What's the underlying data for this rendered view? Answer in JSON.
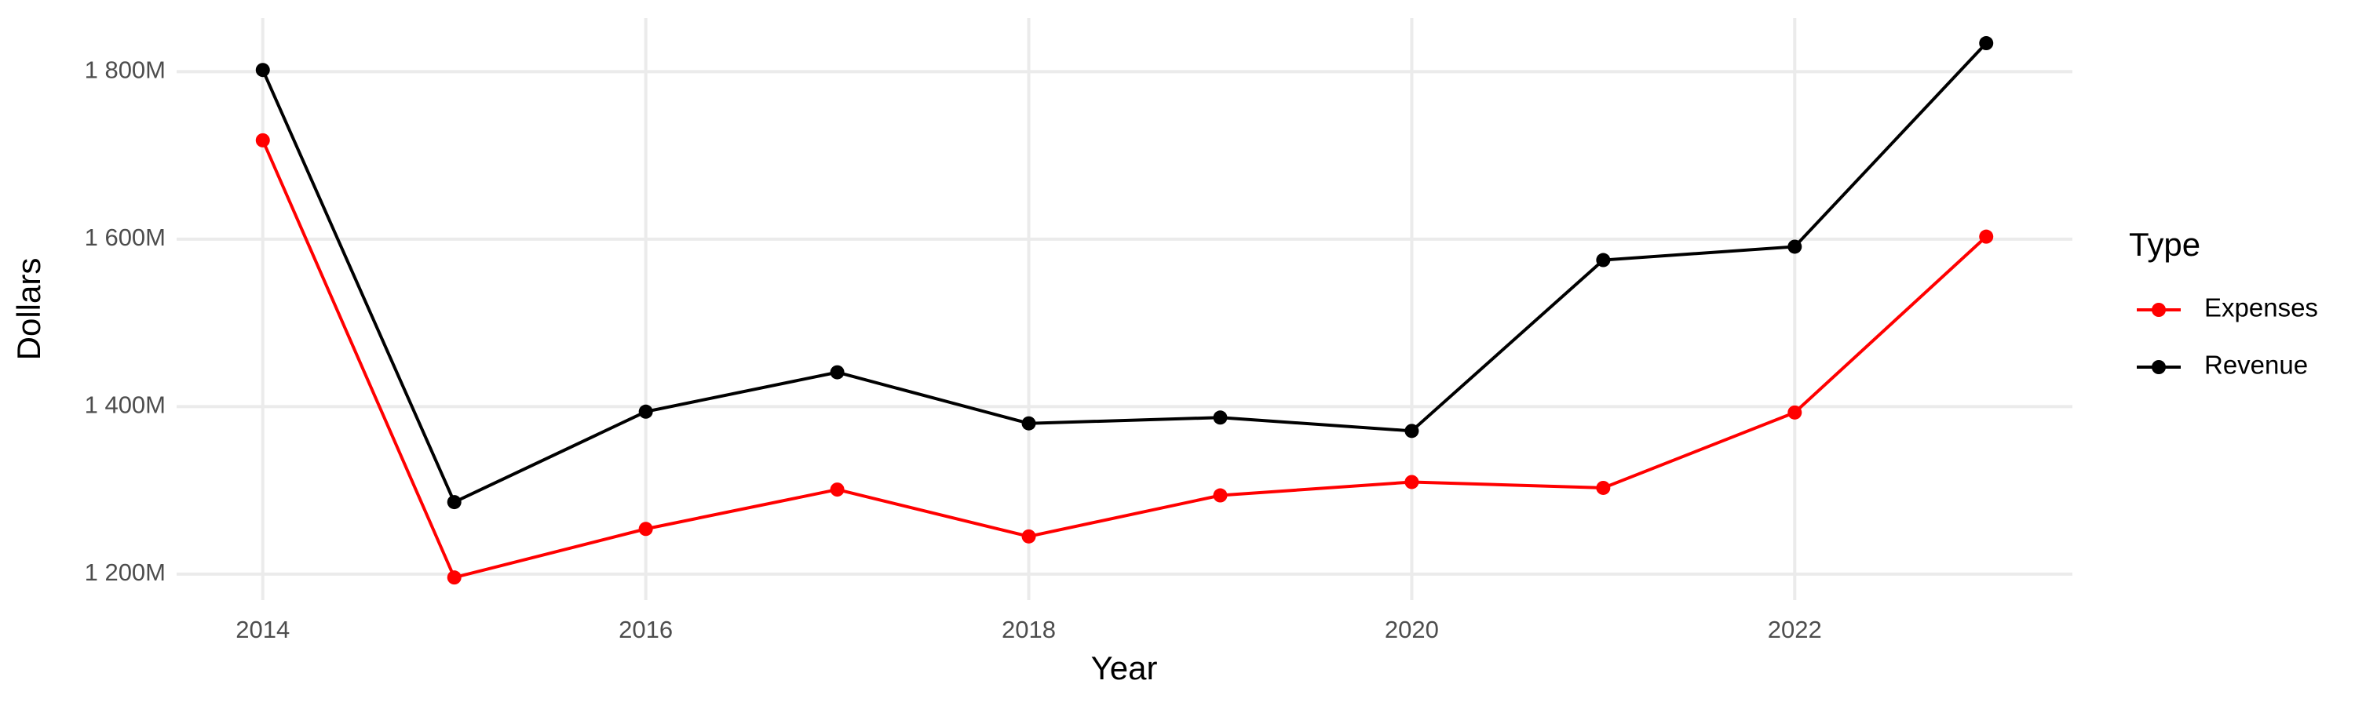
{
  "chart_data": {
    "type": "line",
    "x_label": "Year",
    "y_label": "Dollars",
    "legend_title": "Type",
    "x": [
      2014,
      2015,
      2016,
      2017,
      2018,
      2019,
      2020,
      2021,
      2022,
      2023
    ],
    "series": [
      {
        "name": "Expenses",
        "color": "#ff0000",
        "values": [
          1718000000,
          1196000000,
          1254000000,
          1301000000,
          1245000000,
          1294000000,
          1310000000,
          1303000000,
          1393000000,
          1603000000
        ]
      },
      {
        "name": "Revenue",
        "color": "#000000",
        "values": [
          1802000000,
          1286000000,
          1394000000,
          1441000000,
          1380000000,
          1387000000,
          1371000000,
          1575000000,
          1591000000,
          1834000000
        ]
      }
    ],
    "xlim": [
      2013.55,
      2023.45
    ],
    "xticks": [
      2014,
      2016,
      2018,
      2020,
      2022
    ],
    "ylim": [
      1169000000,
      1864000000
    ],
    "yticks": [
      {
        "value": 1200000000,
        "label": "1 200M"
      },
      {
        "value": 1400000000,
        "label": "1 400M"
      },
      {
        "value": 1600000000,
        "label": "1 600M"
      },
      {
        "value": 1800000000,
        "label": "1 800M"
      }
    ],
    "grid": true,
    "legend": "right"
  }
}
